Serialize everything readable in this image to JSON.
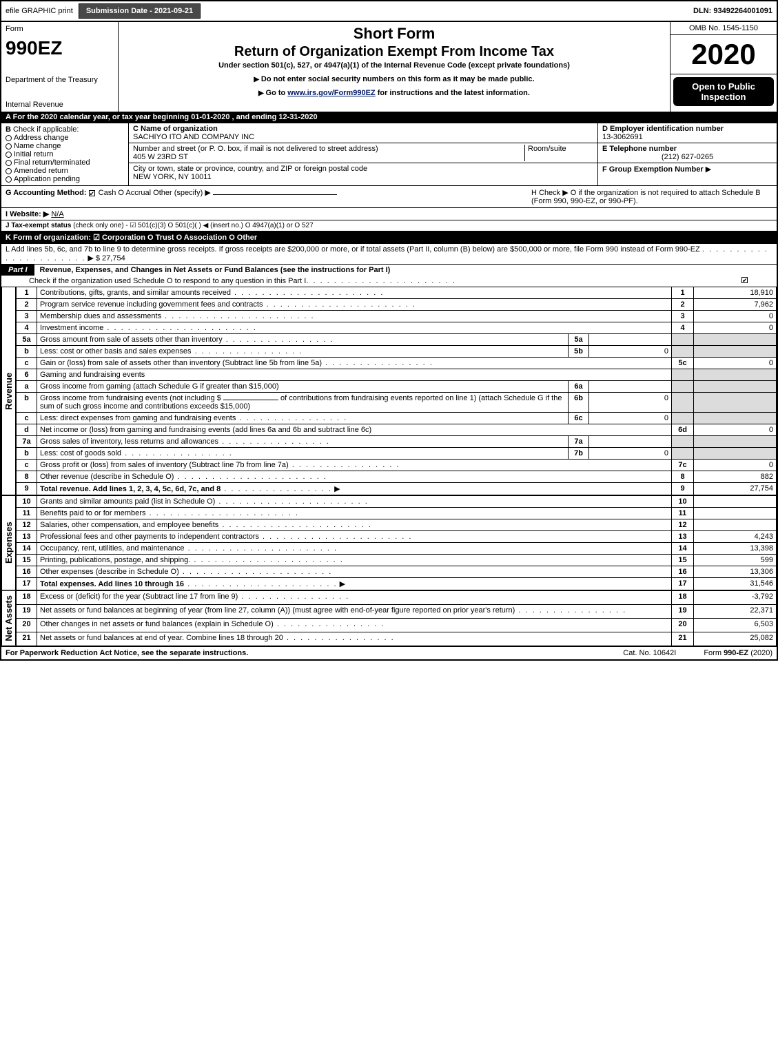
{
  "topbar": {
    "efile": "efile GRAPHIC print",
    "submit_label": "Submission Date - 2021-09-21",
    "dln": "DLN: 93492264001091"
  },
  "header": {
    "form_word": "Form",
    "form_no": "990EZ",
    "dept1": "Department of the Treasury",
    "dept2": "Internal Revenue",
    "short": "Short Form",
    "return_title": "Return of Organization Exempt From Income Tax",
    "under": "Under section 501(c), 527, or 4947(a)(1) of the Internal Revenue Code (except private foundations)",
    "arrow1": "Do not enter social security numbers on this form as it may be made public.",
    "arrow2_pre": "Go to ",
    "arrow2_link": "www.irs.gov/Form990EZ",
    "arrow2_post": " for instructions and the latest information.",
    "omb": "OMB No. 1545-1150",
    "year": "2020",
    "open": "Open to Public Inspection"
  },
  "A": {
    "text": "For the 2020 calendar year, or tax year beginning 01-01-2020 , and ending 12-31-2020"
  },
  "B": {
    "label": "Check if applicable:",
    "opts": [
      "Address change",
      "Name change",
      "Initial return",
      "Final return/terminated",
      "Amended return",
      "Application pending"
    ],
    "c_label": "C Name of organization",
    "c_val": "SACHIYO ITO AND COMPANY INC",
    "street_label": "Number and street (or P. O. box, if mail is not delivered to street address)",
    "street_val": "405 W 23RD ST",
    "room_label": "Room/suite",
    "city_label": "City or town, state or province, country, and ZIP or foreign postal code",
    "city_val": "NEW YORK, NY  10011",
    "D_label": "D Employer identification number",
    "D_val": "13-3062691",
    "E_label": "E Telephone number",
    "E_val": "(212) 627-0265",
    "F_label": "F Group Exemption Number",
    "F_arrow": "▶"
  },
  "GH": {
    "g_label": "G Accounting Method:",
    "g_opts": "Cash   O Accrual   Other (specify) ▶",
    "h_text": "H   Check ▶   O  if the organization is not required to attach Schedule B (Form 990, 990-EZ, or 990-PF).",
    "i_label": "I Website: ▶",
    "i_val": "N/A",
    "j_label": "J Tax-exempt status",
    "j_text": " (check only one) -  ☑ 501(c)(3)  O  501(c)(  ) ◀ (insert no.)  O  4947(a)(1) or  O  527",
    "k_label": "K Form of organization:",
    "k_text": "  ☑ Corporation   O Trust   O Association   O Other",
    "l_text": "L Add lines 5b, 6c, and 7b to line 9 to determine gross receipts. If gross receipts are $200,000 or more, or if total assets (Part II, column (B) below) are $500,000 or more, file Form 990 instead of Form 990-EZ",
    "l_amount": "$ 27,754"
  },
  "part1": {
    "label": "Part I",
    "title": "Revenue, Expenses, and Changes in Net Assets or Fund Balances (see the instructions for Part I)",
    "check_line": "Check if the organization used Schedule O to respond to any question in this Part I"
  },
  "revenue": {
    "sideLabel": "Revenue",
    "rows": [
      {
        "n": "1",
        "t": "Contributions, gifts, grants, and similar amounts received",
        "rn": "1",
        "amt": "18,910"
      },
      {
        "n": "2",
        "t": "Program service revenue including government fees and contracts",
        "rn": "2",
        "amt": "7,962"
      },
      {
        "n": "3",
        "t": "Membership dues and assessments",
        "rn": "3",
        "amt": "0"
      },
      {
        "n": "4",
        "t": "Investment income",
        "rn": "4",
        "amt": "0"
      }
    ],
    "r5a_t": "Gross amount from sale of assets other than inventory",
    "r5a_n": "5a",
    "r5a_amt": "",
    "r5b_t": "Less: cost or other basis and sales expenses",
    "r5b_n": "5b",
    "r5b_amt": "0",
    "r5c_t": "Gain or (loss) from sale of assets other than inventory (Subtract line 5b from line 5a)",
    "r5c_n": "5c",
    "r5c_amt": "0",
    "r6_t": "Gaming and fundraising events",
    "r6a_t": "Gross income from gaming (attach Schedule G if greater than $15,000)",
    "r6a_n": "6a",
    "r6a_amt": "",
    "r6b_t1": "Gross income from fundraising events (not including $",
    "r6b_t2": "of contributions from fundraising events reported on line 1) (attach Schedule G if the sum of such gross income and contributions exceeds $15,000)",
    "r6b_n": "6b",
    "r6b_amt": "0",
    "r6c_t": "Less: direct expenses from gaming and fundraising events",
    "r6c_n": "6c",
    "r6c_amt": "0",
    "r6d_t": "Net income or (loss) from gaming and fundraising events (add lines 6a and 6b and subtract line 6c)",
    "r6d_n": "6d",
    "r6d_amt": "0",
    "r7a_t": "Gross sales of inventory, less returns and allowances",
    "r7a_n": "7a",
    "r7a_amt": "",
    "r7b_t": "Less: cost of goods sold",
    "r7b_n": "7b",
    "r7b_amt": "0",
    "r7c_t": "Gross profit or (loss) from sales of inventory (Subtract line 7b from line 7a)",
    "r7c_n": "7c",
    "r7c_amt": "0",
    "r8_t": "Other revenue (describe in Schedule O)",
    "r8_n": "8",
    "r8_amt": "882",
    "r9_t": "Total revenue. Add lines 1, 2, 3, 4, 5c, 6d, 7c, and 8",
    "r9_n": "9",
    "r9_amt": "27,754"
  },
  "expenses": {
    "sideLabel": "Expenses",
    "rows": [
      {
        "n": "10",
        "t": "Grants and similar amounts paid (list in Schedule O)",
        "amt": ""
      },
      {
        "n": "11",
        "t": "Benefits paid to or for members",
        "amt": ""
      },
      {
        "n": "12",
        "t": "Salaries, other compensation, and employee benefits",
        "amt": ""
      },
      {
        "n": "13",
        "t": "Professional fees and other payments to independent contractors",
        "amt": "4,243"
      },
      {
        "n": "14",
        "t": "Occupancy, rent, utilities, and maintenance",
        "amt": "13,398"
      },
      {
        "n": "15",
        "t": "Printing, publications, postage, and shipping.",
        "amt": "599"
      },
      {
        "n": "16",
        "t": "Other expenses (describe in Schedule O)",
        "amt": "13,306"
      },
      {
        "n": "17",
        "t": "Total expenses. Add lines 10 through 16",
        "amt": "31,546",
        "bold": true,
        "arrow": true
      }
    ]
  },
  "netassets": {
    "sideLabel": "Net Assets",
    "rows": [
      {
        "n": "18",
        "t": "Excess or (deficit) for the year (Subtract line 17 from line 9)",
        "amt": "-3,792"
      },
      {
        "n": "19",
        "t": "Net assets or fund balances at beginning of year (from line 27, column (A)) (must agree with end-of-year figure reported on prior year's return)",
        "amt": "22,371"
      },
      {
        "n": "20",
        "t": "Other changes in net assets or fund balances (explain in Schedule O)",
        "amt": "6,503"
      },
      {
        "n": "21",
        "t": "Net assets or fund balances at end of year. Combine lines 18 through 20",
        "amt": "25,082"
      }
    ]
  },
  "footer": {
    "left": "For Paperwork Reduction Act Notice, see the separate instructions.",
    "cat": "Cat. No. 10642I",
    "form": "Form 990-EZ (2020)"
  }
}
